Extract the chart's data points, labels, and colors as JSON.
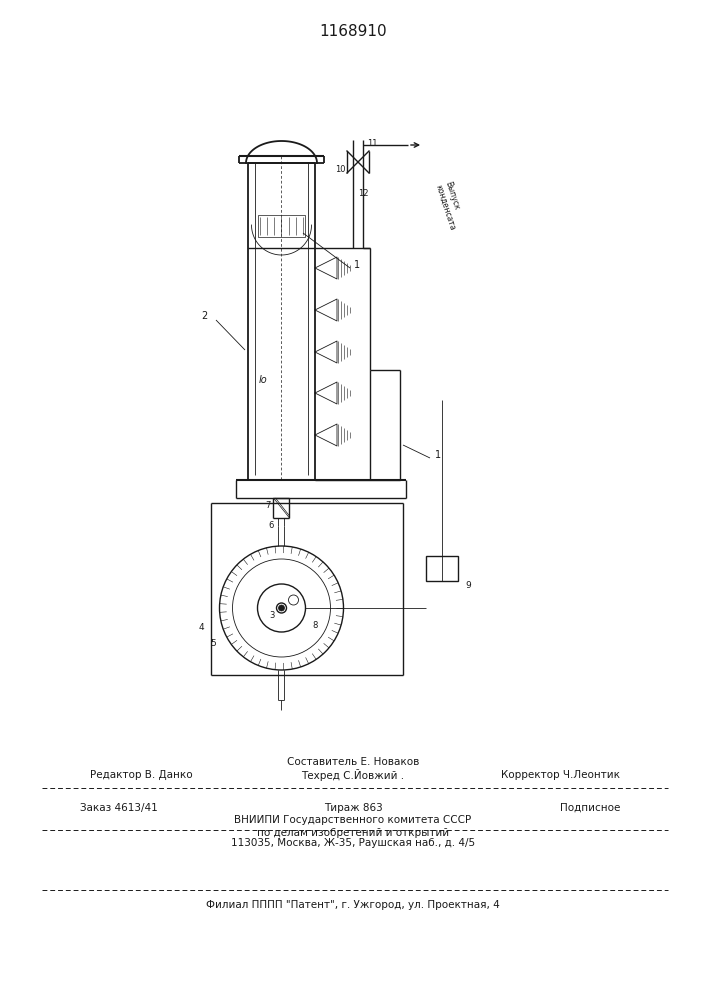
{
  "title": "1168910",
  "title_fontsize": 11,
  "bg_color": "#ffffff",
  "line_color": "#1a1a1a",
  "lw": 1.0,
  "tlw": 0.6,
  "footer": {
    "sestavitel": "Составитель Е. Новаков",
    "redaktor": "Редактор В. Данко",
    "tehred": "Техред С.Йовжий .",
    "korrektor": "Корректор Ч.Леонтик",
    "zakaz": "Заказ 4613/41",
    "tirazh": "Тираж 863",
    "podpisnoe": "Подписное",
    "vniip1": "ВНИИПИ Государственного комитета СССР",
    "vniip2": "по делам изобретений и открытий",
    "vniip3": "113035, Москва, Ж-35, Раушская наб., д. 4/5",
    "filial": "Филиал ПППП \"Патент\", г. Ужгород, ул. Проектная, 4"
  }
}
